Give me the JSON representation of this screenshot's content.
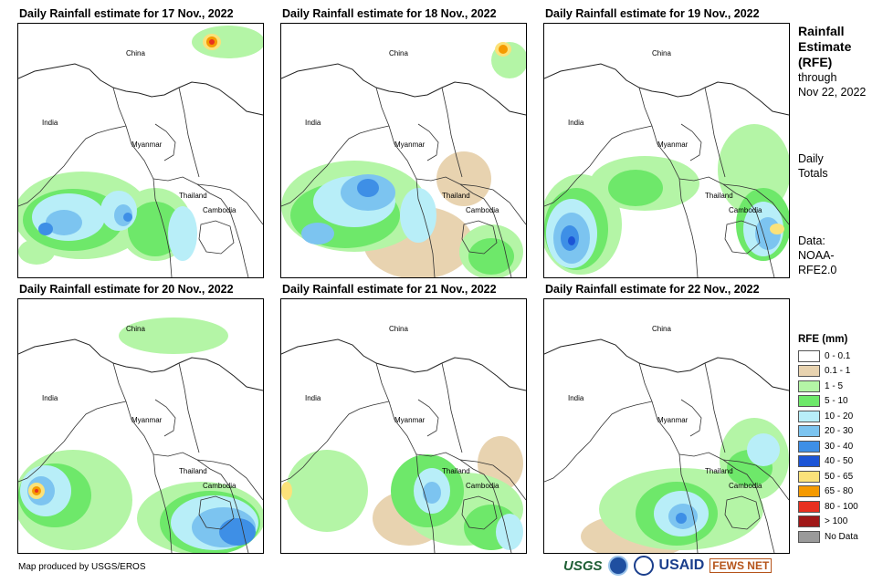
{
  "panels": [
    {
      "title": "Daily Rainfall estimate for 17 Nov., 2022"
    },
    {
      "title": "Daily Rainfall estimate for 18 Nov., 2022"
    },
    {
      "title": "Daily Rainfall estimate for 19 Nov., 2022"
    },
    {
      "title": "Daily Rainfall estimate for 20 Nov., 2022"
    },
    {
      "title": "Daily Rainfall estimate for 21 Nov., 2022"
    },
    {
      "title": "Daily Rainfall estimate for 22 Nov., 2022"
    }
  ],
  "map_labels": {
    "china": "China",
    "india": "India",
    "myanmar": "Myanmar",
    "thailand": "Thailand",
    "cambodia": "Cambodia"
  },
  "sidebar": {
    "title_line1": "Rainfall",
    "title_line2": "Estimate",
    "title_line3": "(RFE)",
    "through": "through",
    "date": "Nov 22, 2022",
    "daily": "Daily",
    "totals": "Totals",
    "data_label": "Data:",
    "data_source1": "NOAA-",
    "data_source2": "RFE2.0"
  },
  "legend": {
    "title": "RFE (mm)",
    "items": [
      {
        "label": "0 - 0.1",
        "color": "#ffffff"
      },
      {
        "label": "0.1 - 1",
        "color": "#e8d3b0"
      },
      {
        "label": "1 - 5",
        "color": "#b4f5a6"
      },
      {
        "label": "5 - 10",
        "color": "#6ee86a"
      },
      {
        "label": "10 - 20",
        "color": "#b8eef8"
      },
      {
        "label": "20 - 30",
        "color": "#7cc4f0"
      },
      {
        "label": "30 - 40",
        "color": "#3e8fe6"
      },
      {
        "label": "40 - 50",
        "color": "#1c55d6"
      },
      {
        "label": "50 - 65",
        "color": "#fbe27a"
      },
      {
        "label": "65 - 80",
        "color": "#f59a00"
      },
      {
        "label": "80 - 100",
        "color": "#e83020"
      },
      {
        "label": "> 100",
        "color": "#a01818"
      },
      {
        "label": "No Data",
        "color": "#9a9a9a"
      }
    ]
  },
  "footer": "Map produced by USGS/EROS",
  "logos": {
    "usgs": "USGS",
    "usaid": "USAID",
    "fews": "FEWS NET"
  }
}
